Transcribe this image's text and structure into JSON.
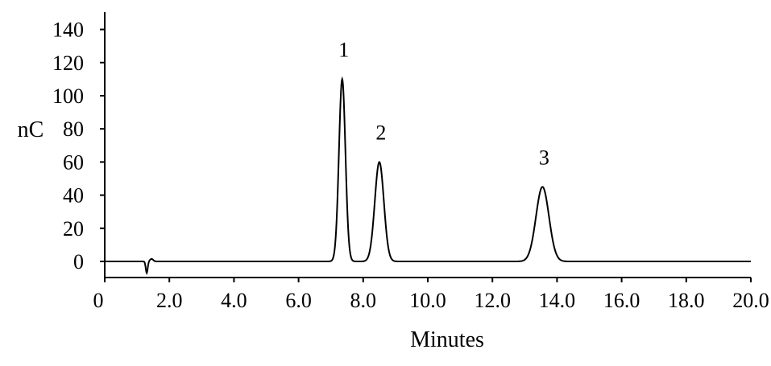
{
  "chart_data": {
    "type": "line",
    "title": "",
    "xlabel": "Minutes",
    "ylabel": "nC",
    "xlim": [
      0,
      20.0
    ],
    "ylim": [
      -10,
      150
    ],
    "x_ticks": [
      0,
      2,
      4,
      6,
      8,
      10,
      12,
      14,
      16,
      18,
      20
    ],
    "x_tick_labels": [
      "0",
      "2.0",
      "4.0",
      "6.0",
      "8.0",
      "10.0",
      "12.0",
      "14.0",
      "16.0",
      "18.0",
      "20.0"
    ],
    "y_ticks": [
      0,
      20,
      40,
      60,
      80,
      100,
      120,
      140
    ],
    "y_tick_labels": [
      "0",
      "20",
      "40",
      "60",
      "80",
      "100",
      "120",
      "140"
    ],
    "grid": false,
    "legend": "none",
    "line_color": "#000000",
    "peaks": [
      {
        "label": "1",
        "x": 7.35,
        "y": 110,
        "width": 0.1
      },
      {
        "label": "2",
        "x": 8.5,
        "y": 60,
        "width": 0.14
      },
      {
        "label": "3",
        "x": 13.55,
        "y": 45,
        "width": 0.2
      }
    ],
    "dip": {
      "x": 1.3,
      "y": -7
    }
  }
}
